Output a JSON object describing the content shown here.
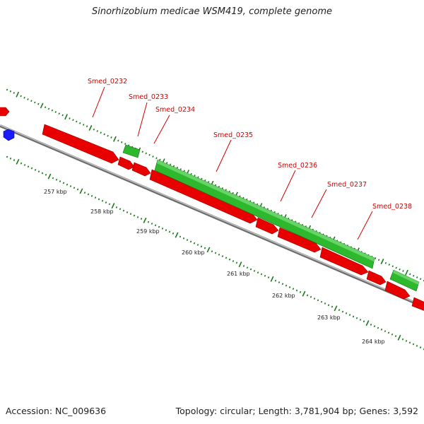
{
  "title": "Sinorhizobium medicae WSM419, complete genome",
  "footer": {
    "accession": "Accession: NC_009636",
    "summary": "Topology: circular; Length: 3,781,904 bp; Genes: 3,592"
  },
  "colors": {
    "forward_gene": "#2db82d",
    "reverse_gene": "#e80000",
    "backbone": "#8c8c8c",
    "ticks": "#1a7a1a",
    "label": "#d40000",
    "marker": "#1a1aff"
  },
  "gene_labels": [
    "Smed_0232",
    "Smed_0233",
    "Smed_0234",
    "Smed_0235",
    "Smed_0236",
    "Smed_0237",
    "Smed_0238"
  ],
  "kbp_labels": [
    "257 kbp",
    "258 kbp",
    "259 kbp",
    "260 kbp",
    "261 kbp",
    "262 kbp",
    "263 kbp",
    "264 kbp"
  ]
}
